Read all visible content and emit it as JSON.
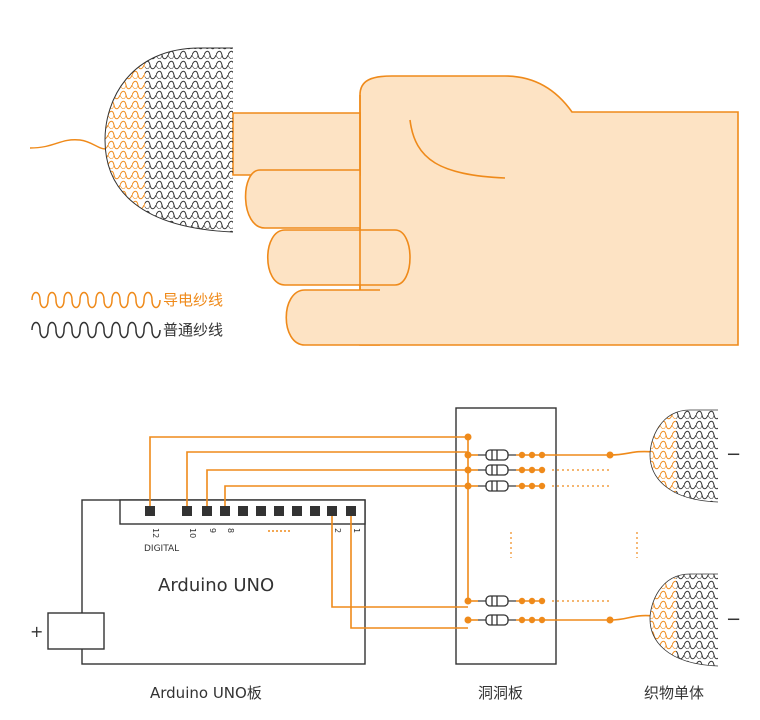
{
  "legend": {
    "conductive_yarn": "导电纱线",
    "normal_yarn": "普通纱线"
  },
  "arduino": {
    "title": "Arduino UNO",
    "caption": "Arduino UNO板",
    "digital_label": "DIGITAL",
    "pins": [
      "12",
      "10",
      "9",
      "8",
      "2",
      "1"
    ],
    "plus_label": "+"
  },
  "breadboard": {
    "caption": "洞洞板"
  },
  "fabric": {
    "caption": "织物单体",
    "minus_top": "−",
    "minus_bottom": "−"
  },
  "colors": {
    "accent": "#ef8a1a",
    "skin": "#fde3c4",
    "outline": "#333333"
  }
}
